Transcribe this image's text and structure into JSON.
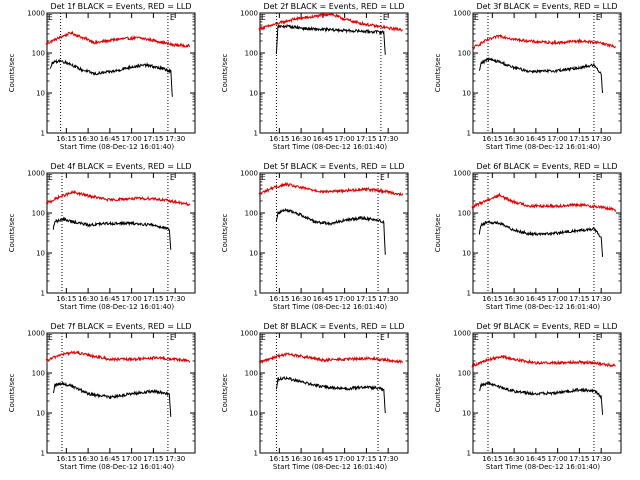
{
  "colors": {
    "events": "#000000",
    "lld": "#e00000",
    "axes": "#000000",
    "background": "#ffffff"
  },
  "common": {
    "xlabel": "Start Time (08-Dec-12 16:01:40)",
    "ylabel": "Counts/sec",
    "event_marker": "E"
  },
  "chart_data": [
    {
      "type": "line",
      "title": "Det 1f BLACK = Events, RED = LLD",
      "xlabel": "Start Time (08-Dec-12 16:01:40)",
      "ylabel": "Counts/sec",
      "y_scale": "log",
      "ylim": [
        1,
        1000
      ],
      "xlim_minutes": [
        0,
        102
      ],
      "xticks": [
        "16:15",
        "16:30",
        "16:45",
        "17:00",
        "17:15",
        "17:30"
      ],
      "yticks": [
        "1",
        "10",
        "100",
        "1000"
      ],
      "markers_x": [
        "16:11",
        "17:25"
      ],
      "series": [
        {
          "color": "#e00000",
          "x": [
            "16:01",
            "16:10",
            "16:18",
            "16:24",
            "16:35",
            "16:50",
            "17:05",
            "17:17",
            "17:28",
            "17:40"
          ],
          "y": [
            170,
            240,
            320,
            260,
            180,
            220,
            240,
            200,
            160,
            150
          ]
        },
        {
          "color": "#000000",
          "x": [
            "16:04",
            "16:05",
            "16:10",
            "16:17",
            "16:24",
            "16:35",
            "16:48",
            "17:00",
            "17:10",
            "17:22",
            "17:27",
            "17:28"
          ],
          "y": [
            40,
            55,
            65,
            55,
            40,
            30,
            35,
            45,
            50,
            40,
            35,
            8
          ]
        }
      ]
    },
    {
      "type": "line",
      "title": "Det 2f BLACK = Events, RED = LLD",
      "xlabel": "Start Time (08-Dec-12 16:01:40)",
      "ylabel": "Counts/sec",
      "y_scale": "log",
      "ylim": [
        1,
        1000
      ],
      "xlim_minutes": [
        0,
        102
      ],
      "xticks": [
        "16:15",
        "16:30",
        "16:45",
        "17:00",
        "17:15",
        "17:30"
      ],
      "yticks": [
        "1",
        "10",
        "100",
        "1000"
      ],
      "markers_x": [
        "16:13",
        "17:25"
      ],
      "series": [
        {
          "color": "#e00000",
          "x": [
            "16:01",
            "16:12",
            "16:25",
            "16:38",
            "16:50",
            "17:00",
            "17:10",
            "17:20",
            "17:30",
            "17:40"
          ],
          "y": [
            400,
            520,
            700,
            800,
            950,
            700,
            560,
            480,
            420,
            380
          ]
        },
        {
          "color": "#000000",
          "x": [
            "16:13",
            "16:14",
            "16:20",
            "16:35",
            "16:50",
            "17:05",
            "17:20",
            "17:27",
            "17:28"
          ],
          "y": [
            100,
            450,
            470,
            400,
            380,
            360,
            340,
            330,
            90
          ]
        }
      ]
    },
    {
      "type": "line",
      "title": "Det 3f BLACK = Events, RED = LLD",
      "xlabel": "Start Time (08-Dec-12 16:01:40)",
      "ylabel": "Counts/sec",
      "y_scale": "log",
      "ylim": [
        1,
        1000
      ],
      "xlim_minutes": [
        0,
        102
      ],
      "xticks": [
        "16:15",
        "16:30",
        "16:45",
        "17:00",
        "17:15",
        "17:30"
      ],
      "yticks": [
        "1",
        "10",
        "100",
        "1000"
      ],
      "markers_x": [
        "16:12",
        "17:25"
      ],
      "series": [
        {
          "color": "#e00000",
          "x": [
            "16:01",
            "16:10",
            "16:20",
            "16:30",
            "16:45",
            "17:00",
            "17:15",
            "17:30",
            "17:40"
          ],
          "y": [
            130,
            200,
            270,
            220,
            190,
            180,
            200,
            180,
            140
          ]
        },
        {
          "color": "#000000",
          "x": [
            "16:06",
            "16:07",
            "16:12",
            "16:20",
            "16:28",
            "16:40",
            "16:55",
            "17:10",
            "17:25",
            "17:30",
            "17:31"
          ],
          "y": [
            35,
            55,
            70,
            60,
            45,
            35,
            35,
            40,
            50,
            30,
            10
          ]
        }
      ]
    },
    {
      "type": "line",
      "title": "Det 4f BLACK = Events, RED = LLD",
      "xlabel": "Start Time (08-Dec-12 16:01:40)",
      "ylabel": "Counts/sec",
      "y_scale": "log",
      "ylim": [
        1,
        1000
      ],
      "xlim_minutes": [
        0,
        102
      ],
      "xticks": [
        "16:15",
        "16:30",
        "16:45",
        "17:00",
        "17:15",
        "17:30"
      ],
      "yticks": [
        "1",
        "10",
        "100",
        "1000"
      ],
      "markers_x": [
        "16:12",
        "17:25"
      ],
      "series": [
        {
          "color": "#e00000",
          "x": [
            "16:01",
            "16:10",
            "16:20",
            "16:30",
            "16:45",
            "17:00",
            "17:15",
            "17:30",
            "17:40"
          ],
          "y": [
            170,
            250,
            330,
            270,
            210,
            230,
            230,
            190,
            160
          ]
        },
        {
          "color": "#000000",
          "x": [
            "16:06",
            "16:07",
            "16:12",
            "16:20",
            "16:30",
            "16:45",
            "17:00",
            "17:15",
            "17:26",
            "17:27"
          ],
          "y": [
            40,
            60,
            70,
            60,
            50,
            55,
            55,
            50,
            40,
            12
          ]
        }
      ]
    },
    {
      "type": "line",
      "title": "Det 5f BLACK = Events, RED = LLD",
      "xlabel": "Start Time (08-Dec-12 16:01:40)",
      "ylabel": "Counts/sec",
      "y_scale": "log",
      "ylim": [
        1,
        1000
      ],
      "xlim_minutes": [
        0,
        102
      ],
      "xticks": [
        "16:15",
        "16:30",
        "16:45",
        "17:00",
        "17:15",
        "17:30"
      ],
      "yticks": [
        "1",
        "10",
        "100",
        "1000"
      ],
      "markers_x": [
        "16:13",
        "17:23"
      ],
      "series": [
        {
          "color": "#e00000",
          "x": [
            "16:01",
            "16:10",
            "16:20",
            "16:30",
            "16:45",
            "17:00",
            "17:15",
            "17:30",
            "17:40"
          ],
          "y": [
            300,
            420,
            520,
            430,
            340,
            360,
            400,
            340,
            280
          ]
        },
        {
          "color": "#000000",
          "x": [
            "16:13",
            "16:14",
            "16:20",
            "16:30",
            "16:40",
            "16:50",
            "17:00",
            "17:10",
            "17:20",
            "17:27",
            "17:28"
          ],
          "y": [
            60,
            100,
            120,
            90,
            60,
            55,
            65,
            75,
            70,
            60,
            9
          ]
        }
      ]
    },
    {
      "type": "line",
      "title": "Det 6f BLACK = Events, RED = LLD",
      "xlabel": "Start Time (08-Dec-12 16:01:40)",
      "ylabel": "Counts/sec",
      "y_scale": "log",
      "ylim": [
        1,
        1000
      ],
      "xlim_minutes": [
        0,
        102
      ],
      "xticks": [
        "16:15",
        "16:30",
        "16:45",
        "17:00",
        "17:15",
        "17:30"
      ],
      "yticks": [
        "1",
        "10",
        "100",
        "1000"
      ],
      "markers_x": [
        "16:12",
        "17:25"
      ],
      "series": [
        {
          "color": "#e00000",
          "x": [
            "16:01",
            "16:10",
            "16:20",
            "16:28",
            "16:40",
            "17:00",
            "17:15",
            "17:30",
            "17:40"
          ],
          "y": [
            140,
            200,
            280,
            200,
            150,
            150,
            160,
            140,
            120
          ]
        },
        {
          "color": "#000000",
          "x": [
            "16:06",
            "16:07",
            "16:12",
            "16:20",
            "16:28",
            "16:40",
            "16:55",
            "17:10",
            "17:25",
            "17:30",
            "17:31"
          ],
          "y": [
            30,
            50,
            60,
            55,
            40,
            30,
            30,
            35,
            40,
            25,
            8
          ]
        }
      ]
    },
    {
      "type": "line",
      "title": "Det 7f BLACK = Events, RED = LLD",
      "xlabel": "Start Time (08-Dec-12 16:01:40)",
      "ylabel": "Counts/sec",
      "y_scale": "log",
      "ylim": [
        1,
        1000
      ],
      "xlim_minutes": [
        0,
        102
      ],
      "xticks": [
        "16:15",
        "16:30",
        "16:45",
        "17:00",
        "17:15",
        "17:30"
      ],
      "yticks": [
        "1",
        "10",
        "100",
        "1000"
      ],
      "markers_x": [
        "16:12",
        "17:25"
      ],
      "series": [
        {
          "color": "#e00000",
          "x": [
            "16:01",
            "16:10",
            "16:20",
            "16:30",
            "16:45",
            "17:00",
            "17:15",
            "17:30",
            "17:40"
          ],
          "y": [
            200,
            280,
            330,
            280,
            220,
            220,
            240,
            220,
            200
          ]
        },
        {
          "color": "#000000",
          "x": [
            "16:06",
            "16:07",
            "16:12",
            "16:20",
            "16:30",
            "16:45",
            "17:00",
            "17:15",
            "17:26",
            "17:27"
          ],
          "y": [
            30,
            50,
            55,
            45,
            30,
            25,
            30,
            35,
            30,
            8
          ]
        }
      ]
    },
    {
      "type": "line",
      "title": "Det 8f BLACK = Events, RED = LLD",
      "xlabel": "Start Time (08-Dec-12 16:01:40)",
      "ylabel": "Counts/sec",
      "y_scale": "log",
      "ylim": [
        1,
        1000
      ],
      "xlim_minutes": [
        0,
        102
      ],
      "xticks": [
        "16:15",
        "16:30",
        "16:45",
        "17:00",
        "17:15",
        "17:30"
      ],
      "yticks": [
        "1",
        "10",
        "100",
        "1000"
      ],
      "markers_x": [
        "16:13",
        "17:23"
      ],
      "series": [
        {
          "color": "#e00000",
          "x": [
            "16:01",
            "16:10",
            "16:20",
            "16:30",
            "16:45",
            "17:00",
            "17:15",
            "17:30",
            "17:40"
          ],
          "y": [
            180,
            240,
            300,
            260,
            210,
            220,
            230,
            210,
            190
          ]
        },
        {
          "color": "#000000",
          "x": [
            "16:13",
            "16:14",
            "16:20",
            "16:30",
            "16:45",
            "17:00",
            "17:15",
            "17:27",
            "17:28"
          ],
          "y": [
            40,
            70,
            75,
            60,
            45,
            40,
            45,
            40,
            10
          ]
        }
      ]
    },
    {
      "type": "line",
      "title": "Det 9f BLACK = Events, RED = LLD",
      "xlabel": "Start Time (08-Dec-12 16:01:40)",
      "ylabel": "Counts/sec",
      "y_scale": "log",
      "ylim": [
        1,
        1000
      ],
      "xlim_minutes": [
        0,
        102
      ],
      "xticks": [
        "16:15",
        "16:30",
        "16:45",
        "17:00",
        "17:15",
        "17:30"
      ],
      "yticks": [
        "1",
        "10",
        "100",
        "1000"
      ],
      "markers_x": [
        "16:12",
        "17:25"
      ],
      "series": [
        {
          "color": "#e00000",
          "x": [
            "16:01",
            "16:10",
            "16:20",
            "16:30",
            "16:45",
            "17:00",
            "17:15",
            "17:30",
            "17:40"
          ],
          "y": [
            150,
            200,
            260,
            220,
            180,
            180,
            190,
            170,
            150
          ]
        },
        {
          "color": "#000000",
          "x": [
            "16:06",
            "16:07",
            "16:12",
            "16:20",
            "16:30",
            "16:45",
            "17:00",
            "17:15",
            "17:26",
            "17:30",
            "17:31"
          ],
          "y": [
            35,
            50,
            55,
            45,
            35,
            30,
            32,
            38,
            35,
            25,
            9
          ]
        }
      ]
    }
  ]
}
